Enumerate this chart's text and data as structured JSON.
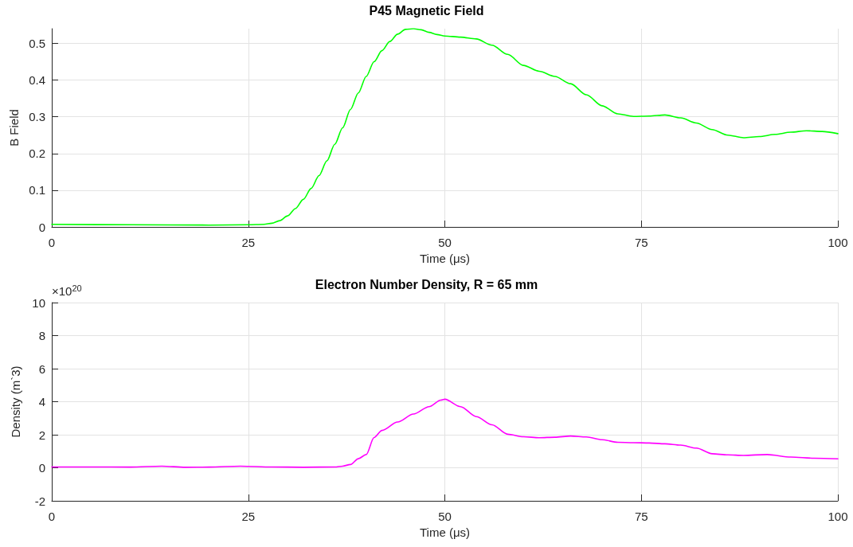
{
  "chart_data": [
    {
      "type": "line",
      "title": "P45 Magnetic Field",
      "xlabel": "Time (μs)",
      "ylabel": "B Field",
      "xlim": [
        0,
        100
      ],
      "xticks": [
        0,
        25,
        50,
        75,
        100
      ],
      "ylim": [
        0,
        0.54
      ],
      "yticks": [
        0,
        0.1,
        0.2,
        0.3,
        0.4,
        0.5
      ],
      "grid": true,
      "marker": "none",
      "line_style": "solid",
      "series": [
        {
          "color": "#00ff00",
          "x": [
            0,
            10,
            20,
            25,
            27,
            28,
            29,
            30,
            31,
            32,
            33,
            34,
            35,
            36,
            37,
            38,
            39,
            40,
            41,
            42,
            43,
            44,
            45,
            46,
            47,
            48,
            49,
            50,
            52,
            54,
            56,
            58,
            60,
            62,
            64,
            66,
            68,
            70,
            72,
            74,
            76,
            78,
            80,
            82,
            84,
            86,
            88,
            90,
            92,
            94,
            96,
            98,
            100
          ],
          "values": [
            0.007,
            0.006,
            0.005,
            0.006,
            0.007,
            0.01,
            0.017,
            0.03,
            0.05,
            0.075,
            0.105,
            0.14,
            0.18,
            0.225,
            0.27,
            0.32,
            0.365,
            0.41,
            0.45,
            0.48,
            0.505,
            0.525,
            0.538,
            0.54,
            0.537,
            0.53,
            0.524,
            0.52,
            0.517,
            0.512,
            0.495,
            0.47,
            0.44,
            0.424,
            0.41,
            0.39,
            0.36,
            0.33,
            0.308,
            0.301,
            0.302,
            0.305,
            0.297,
            0.283,
            0.265,
            0.25,
            0.243,
            0.246,
            0.252,
            0.258,
            0.262,
            0.26,
            0.254
          ]
        }
      ]
    },
    {
      "type": "line",
      "title": "Electron Number Density, R = 65 mm",
      "xlabel": "Time (μs)",
      "ylabel": "Density (m`3)",
      "annotations": [
        "×10$^{20}$"
      ],
      "xlim": [
        0,
        100
      ],
      "xticks": [
        0,
        25,
        50,
        75,
        100
      ],
      "ylim": [
        -2,
        10
      ],
      "yticks": [
        -2,
        0,
        2,
        4,
        6,
        8,
        10
      ],
      "grid": true,
      "marker": "none",
      "line_style": "solid",
      "series": [
        {
          "color": "#ff00ff",
          "x": [
            0,
            5,
            10,
            14,
            17,
            20,
            24,
            28,
            32,
            36,
            37,
            38,
            39,
            40,
            41,
            42,
            44,
            46,
            48,
            49.5,
            50,
            52,
            54,
            56,
            58,
            60,
            62,
            64,
            66,
            68,
            70,
            72,
            74,
            76,
            78,
            80,
            82,
            84,
            86,
            88,
            91,
            94,
            97,
            100
          ],
          "values": [
            0.05,
            0.05,
            0.04,
            0.1,
            0.03,
            0.04,
            0.1,
            0.05,
            0.03,
            0.05,
            0.1,
            0.2,
            0.55,
            0.8,
            1.83,
            2.26,
            2.77,
            3.25,
            3.7,
            4.1,
            4.15,
            3.7,
            3.1,
            2.6,
            2.03,
            1.88,
            1.82,
            1.85,
            1.92,
            1.87,
            1.7,
            1.54,
            1.52,
            1.5,
            1.45,
            1.37,
            1.19,
            0.85,
            0.78,
            0.75,
            0.8,
            0.65,
            0.58,
            0.54
          ]
        }
      ]
    }
  ]
}
